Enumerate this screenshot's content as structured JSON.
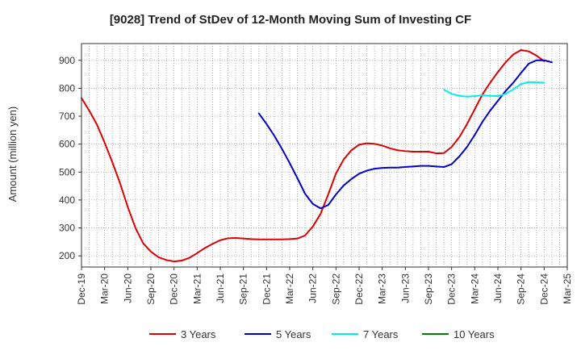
{
  "chart_data": {
    "type": "line",
    "title": "[9028]  Trend of StDev of 12-Month Moving Sum of Investing CF",
    "xlabel": "",
    "ylabel": "Amount (million yen)",
    "ylim": [
      160,
      960
    ],
    "yticks": [
      200,
      300,
      400,
      500,
      600,
      700,
      800,
      900
    ],
    "x_tick_labels": [
      "Dec-19",
      "Mar-20",
      "Jun-20",
      "Sep-20",
      "Dec-20",
      "Mar-21",
      "Jun-21",
      "Sep-21",
      "Dec-21",
      "Mar-22",
      "Jun-22",
      "Sep-22",
      "Dec-22",
      "Mar-23",
      "Jun-23",
      "Sep-23",
      "Dec-23",
      "Mar-24",
      "Jun-24",
      "Sep-24",
      "Dec-24",
      "Mar-25"
    ],
    "x_months": [
      "2019-12",
      "2020-01",
      "2020-02",
      "2020-03",
      "2020-04",
      "2020-05",
      "2020-06",
      "2020-07",
      "2020-08",
      "2020-09",
      "2020-10",
      "2020-11",
      "2020-12",
      "2021-01",
      "2021-02",
      "2021-03",
      "2021-04",
      "2021-05",
      "2021-06",
      "2021-07",
      "2021-08",
      "2021-09",
      "2021-10",
      "2021-11",
      "2021-12",
      "2022-01",
      "2022-02",
      "2022-03",
      "2022-04",
      "2022-05",
      "2022-06",
      "2022-07",
      "2022-08",
      "2022-09",
      "2022-10",
      "2022-11",
      "2022-12",
      "2023-01",
      "2023-02",
      "2023-03",
      "2023-04",
      "2023-05",
      "2023-06",
      "2023-07",
      "2023-08",
      "2023-09",
      "2023-10",
      "2023-11",
      "2023-12",
      "2024-01",
      "2024-02",
      "2024-03",
      "2024-04",
      "2024-05",
      "2024-06",
      "2024-07",
      "2024-08",
      "2024-09",
      "2024-10",
      "2024-11",
      "2024-12",
      "2025-01",
      "2025-02",
      "2025-03"
    ],
    "grid": true,
    "legend_position": "bottom",
    "series": [
      {
        "name": "3 Years",
        "color": "#dd0000",
        "start": "2019-12",
        "values": [
          765,
          720,
          670,
          605,
          535,
          460,
          375,
          300,
          245,
          215,
          195,
          185,
          180,
          183,
          193,
          210,
          228,
          243,
          256,
          263,
          264,
          262,
          260,
          259,
          259,
          259,
          259,
          260,
          262,
          273,
          305,
          350,
          420,
          495,
          545,
          578,
          598,
          603,
          601,
          595,
          585,
          578,
          575,
          573,
          573,
          573,
          567,
          568,
          590,
          625,
          672,
          725,
          778,
          820,
          858,
          893,
          921,
          937,
          932,
          917,
          897
        ]
      },
      {
        "name": "5 Years",
        "color": "#0000cc",
        "start": "2021-11",
        "values": [
          710,
          672,
          630,
          583,
          532,
          478,
          422,
          386,
          370,
          382,
          420,
          452,
          475,
          494,
          505,
          512,
          515,
          516,
          516,
          518,
          520,
          522,
          522,
          520,
          518,
          528,
          556,
          590,
          633,
          680,
          720,
          755,
          790,
          820,
          855,
          888,
          900,
          900,
          893
        ]
      },
      {
        "name": "7 Years",
        "color": "#00eeee",
        "start": "2023-11",
        "values": [
          795,
          780,
          773,
          770,
          772,
          775,
          773,
          772,
          780,
          796,
          815,
          822,
          821,
          820
        ]
      },
      {
        "name": "10 Years",
        "color": "#008000",
        "start": "2024-01",
        "values": []
      }
    ]
  }
}
